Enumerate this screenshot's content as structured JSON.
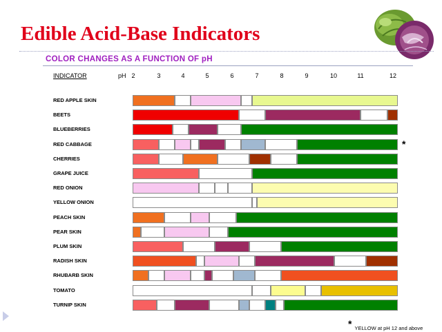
{
  "title": "Edible Acid-Base Indicators",
  "subtitle": "COLOR CHANGES AS A FUNCTION OF pH",
  "chart_data": {
    "type": "bar",
    "title": "Edible Acid-Base Indicators",
    "subtitle": "COLOR CHANGES AS A FUNCTION OF pH",
    "header_label": "INDICATOR",
    "xlabel": "pH",
    "xlim": [
      2,
      12
    ],
    "x_ticks": [
      2,
      3,
      4,
      5,
      6,
      7,
      8,
      9,
      10,
      11,
      12
    ],
    "rows": [
      {
        "name": "RED APPLE SKIN",
        "segments": [
          {
            "from": 2,
            "to": 3.6,
            "color": "#f07020"
          },
          {
            "from": 3.6,
            "to": 4.2,
            "color": "#ffffff"
          },
          {
            "from": 4.2,
            "to": 6.1,
            "color": "#f8c8f0"
          },
          {
            "from": 6.1,
            "to": 6.5,
            "color": "#ffffff"
          },
          {
            "from": 6.5,
            "to": 12,
            "color": "#e8f890"
          }
        ]
      },
      {
        "name": "BEETS",
        "segments": [
          {
            "from": 2,
            "to": 6,
            "color": "#f00000"
          },
          {
            "from": 6,
            "to": 7,
            "color": "#ffffff"
          },
          {
            "from": 7,
            "to": 10.6,
            "color": "#9c2a60"
          },
          {
            "from": 10.6,
            "to": 11.6,
            "color": "#ffffff"
          },
          {
            "from": 11.6,
            "to": 12,
            "color": "#a03000"
          }
        ]
      },
      {
        "name": "BLUEBERRIES",
        "segments": [
          {
            "from": 2,
            "to": 3.5,
            "color": "#f00000"
          },
          {
            "from": 3.5,
            "to": 4.1,
            "color": "#ffffff"
          },
          {
            "from": 4.1,
            "to": 5.2,
            "color": "#9c2a60"
          },
          {
            "from": 5.2,
            "to": 6.1,
            "color": "#ffffff"
          },
          {
            "from": 6.1,
            "to": 12,
            "color": "#008000"
          }
        ]
      },
      {
        "name": "RED CABBAGE",
        "segments": [
          {
            "from": 2,
            "to": 3,
            "color": "#f86060"
          },
          {
            "from": 3,
            "to": 3.6,
            "color": "#ffffff"
          },
          {
            "from": 3.6,
            "to": 4.2,
            "color": "#f8c8f0"
          },
          {
            "from": 4.2,
            "to": 4.5,
            "color": "#ffffff"
          },
          {
            "from": 4.5,
            "to": 5.5,
            "color": "#9c2a60"
          },
          {
            "from": 5.5,
            "to": 6.1,
            "color": "#ffffff"
          },
          {
            "from": 6.1,
            "to": 7,
            "color": "#a0b8d0"
          },
          {
            "from": 7,
            "to": 8.2,
            "color": "#ffffff"
          },
          {
            "from": 8.2,
            "to": 12,
            "color": "#008000"
          }
        ]
      },
      {
        "name": "CHERRIES",
        "segments": [
          {
            "from": 2,
            "to": 3,
            "color": "#f86060"
          },
          {
            "from": 3,
            "to": 3.9,
            "color": "#ffffff"
          },
          {
            "from": 3.9,
            "to": 5.2,
            "color": "#f07020"
          },
          {
            "from": 5.2,
            "to": 6.4,
            "color": "#ffffff"
          },
          {
            "from": 6.4,
            "to": 7.2,
            "color": "#a03000"
          },
          {
            "from": 7.2,
            "to": 8.2,
            "color": "#ffffff"
          },
          {
            "from": 8.2,
            "to": 12,
            "color": "#008000"
          }
        ]
      },
      {
        "name": "GRAPE JUICE",
        "segments": [
          {
            "from": 2,
            "to": 4.5,
            "color": "#f86060"
          },
          {
            "from": 4.5,
            "to": 6.5,
            "color": "#ffffff"
          },
          {
            "from": 6.5,
            "to": 12,
            "color": "#008000"
          }
        ]
      },
      {
        "name": "RED ONION",
        "segments": [
          {
            "from": 2,
            "to": 4.5,
            "color": "#f8c8f0"
          },
          {
            "from": 4.5,
            "to": 5.1,
            "color": "#ffffff"
          },
          {
            "from": 5.1,
            "to": 5.6,
            "color": "#ffffff"
          },
          {
            "from": 5.6,
            "to": 6.5,
            "color": "#ffffff"
          },
          {
            "from": 6.5,
            "to": 12,
            "color": "#fcfcb0"
          }
        ]
      },
      {
        "name": "YELLOW ONION",
        "segments": [
          {
            "from": 2,
            "to": 6.5,
            "color": "#ffffff"
          },
          {
            "from": 6.5,
            "to": 6.7,
            "color": "#ffffff"
          },
          {
            "from": 6.7,
            "to": 12,
            "color": "#fcfcb0"
          }
        ]
      },
      {
        "name": "PEACH SKIN",
        "segments": [
          {
            "from": 2,
            "to": 3.2,
            "color": "#f07020"
          },
          {
            "from": 3.2,
            "to": 4.2,
            "color": "#ffffff"
          },
          {
            "from": 4.2,
            "to": 4.9,
            "color": "#f8c8f0"
          },
          {
            "from": 4.9,
            "to": 5.9,
            "color": "#ffffff"
          },
          {
            "from": 5.9,
            "to": 12,
            "color": "#008000"
          }
        ]
      },
      {
        "name": "PEAR SKIN",
        "segments": [
          {
            "from": 2,
            "to": 2.3,
            "color": "#f07020"
          },
          {
            "from": 2.3,
            "to": 3.2,
            "color": "#ffffff"
          },
          {
            "from": 3.2,
            "to": 4.9,
            "color": "#f8c8f0"
          },
          {
            "from": 4.9,
            "to": 5.6,
            "color": "#ffffff"
          },
          {
            "from": 5.6,
            "to": 12,
            "color": "#008000"
          }
        ]
      },
      {
        "name": "PLUM SKIN",
        "segments": [
          {
            "from": 2,
            "to": 3.9,
            "color": "#f86060"
          },
          {
            "from": 3.9,
            "to": 5.1,
            "color": "#ffffff"
          },
          {
            "from": 5.1,
            "to": 6.4,
            "color": "#9c2a60"
          },
          {
            "from": 6.4,
            "to": 7.6,
            "color": "#ffffff"
          },
          {
            "from": 7.6,
            "to": 12,
            "color": "#008000"
          }
        ]
      },
      {
        "name": "RADISH SKIN",
        "segments": [
          {
            "from": 2,
            "to": 4.4,
            "color": "#f05020"
          },
          {
            "from": 4.4,
            "to": 4.7,
            "color": "#ffffff"
          },
          {
            "from": 4.7,
            "to": 6,
            "color": "#f8c8f0"
          },
          {
            "from": 6,
            "to": 6.6,
            "color": "#ffffff"
          },
          {
            "from": 6.6,
            "to": 9.6,
            "color": "#9c2a60"
          },
          {
            "from": 9.6,
            "to": 10.8,
            "color": "#ffffff"
          },
          {
            "from": 10.8,
            "to": 12,
            "color": "#a03000"
          }
        ]
      },
      {
        "name": "RHUBARB SKIN",
        "segments": [
          {
            "from": 2,
            "to": 2.6,
            "color": "#f07020"
          },
          {
            "from": 2.6,
            "to": 3.2,
            "color": "#ffffff"
          },
          {
            "from": 3.2,
            "to": 4.2,
            "color": "#f8c8f0"
          },
          {
            "from": 4.2,
            "to": 4.7,
            "color": "#ffffff"
          },
          {
            "from": 4.7,
            "to": 5,
            "color": "#9c2a60"
          },
          {
            "from": 5,
            "to": 5.8,
            "color": "#ffffff"
          },
          {
            "from": 5.8,
            "to": 6.6,
            "color": "#a0b8d0"
          },
          {
            "from": 6.6,
            "to": 7.6,
            "color": "#ffffff"
          },
          {
            "from": 7.6,
            "to": 12,
            "color": "#f05020"
          }
        ]
      },
      {
        "name": "TOMATO",
        "segments": [
          {
            "from": 2,
            "to": 6.5,
            "color": "#ffffff"
          },
          {
            "from": 6.5,
            "to": 7.2,
            "color": "#ffffff"
          },
          {
            "from": 7.2,
            "to": 8.5,
            "color": "#fcfc90"
          },
          {
            "from": 8.5,
            "to": 9.1,
            "color": "#ffffff"
          },
          {
            "from": 9.1,
            "to": 12,
            "color": "#e8c000"
          }
        ]
      },
      {
        "name": "TURNIP SKIN",
        "segments": [
          {
            "from": 2,
            "to": 2.9,
            "color": "#f86060"
          },
          {
            "from": 2.9,
            "to": 3.6,
            "color": "#ffffff"
          },
          {
            "from": 3.6,
            "to": 4.9,
            "color": "#9c2a60"
          },
          {
            "from": 4.9,
            "to": 6,
            "color": "#ffffff"
          },
          {
            "from": 6,
            "to": 6.4,
            "color": "#a0b8d0"
          },
          {
            "from": 6.4,
            "to": 7,
            "color": "#ffffff"
          },
          {
            "from": 7,
            "to": 7.4,
            "color": "#008080"
          },
          {
            "from": 7.4,
            "to": 7.7,
            "color": "#ffffff"
          },
          {
            "from": 7.7,
            "to": 12,
            "color": "#008000"
          }
        ]
      }
    ],
    "annotations": [
      {
        "text": "*",
        "row": "RED CABBAGE"
      }
    ],
    "footnote": {
      "mark": "*",
      "text": "YELLOW at pH 12 and above"
    }
  }
}
